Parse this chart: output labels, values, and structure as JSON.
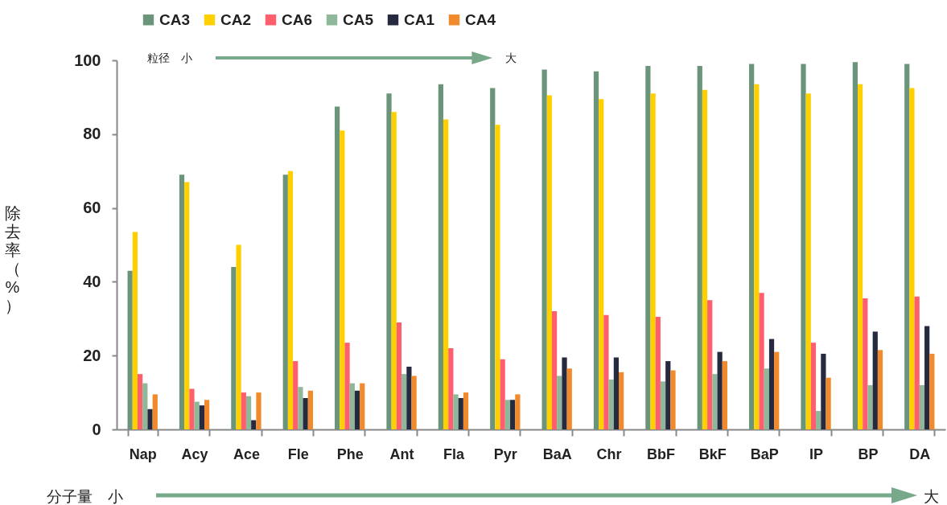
{
  "chart_data": {
    "type": "bar",
    "ylabel": "除去率（%）",
    "categories": [
      "Nap",
      "Acy",
      "Ace",
      "Fle",
      "Phe",
      "Ant",
      "Fla",
      "Pyr",
      "BaA",
      "Chr",
      "BbF",
      "BkF",
      "BaP",
      "IP",
      "BP",
      "DA"
    ],
    "series": [
      {
        "name": "CA3",
        "color": "#6b957a",
        "values": [
          43,
          69,
          44,
          69,
          87.5,
          91,
          93.5,
          92.5,
          97.5,
          97,
          98.5,
          98.5,
          99,
          99,
          99.5,
          99
        ]
      },
      {
        "name": "CA2",
        "color": "#ffd000",
        "values": [
          53.5,
          67,
          50,
          70,
          81,
          86,
          84,
          82.5,
          90.5,
          89.5,
          91,
          92,
          93.5,
          91,
          93.5,
          92.5
        ]
      },
      {
        "name": "CA6",
        "color": "#ff5f6d",
        "values": [
          15,
          11,
          10,
          18.5,
          23.5,
          29,
          22,
          19,
          32,
          31,
          30.5,
          35,
          37,
          23.5,
          35.5,
          36
        ]
      },
      {
        "name": "CA5",
        "color": "#8fb79a",
        "values": [
          12.5,
          7.5,
          9,
          11.5,
          12.5,
          15,
          9.5,
          8,
          14.5,
          13.5,
          13,
          15,
          16.5,
          5,
          12,
          12
        ]
      },
      {
        "name": "CA1",
        "color": "#262a40",
        "values": [
          5.5,
          6.5,
          2.5,
          8.5,
          10.5,
          17,
          8.5,
          8,
          19.5,
          19.5,
          18.5,
          21,
          24.5,
          20.5,
          26.5,
          28
        ]
      },
      {
        "name": "CA4",
        "color": "#f08a2c",
        "values": [
          9.5,
          8,
          10,
          10.5,
          12.5,
          14.5,
          10,
          9.5,
          16.5,
          15.5,
          16,
          18.5,
          21,
          14,
          21.5,
          20.5
        ]
      }
    ],
    "ylim": [
      0,
      100
    ],
    "yticks": [
      0,
      20,
      40,
      60,
      80,
      100
    ],
    "grid": false,
    "legend": "top left",
    "annotations": [
      "粒径　小",
      "大",
      "分子量　小",
      "大"
    ]
  }
}
